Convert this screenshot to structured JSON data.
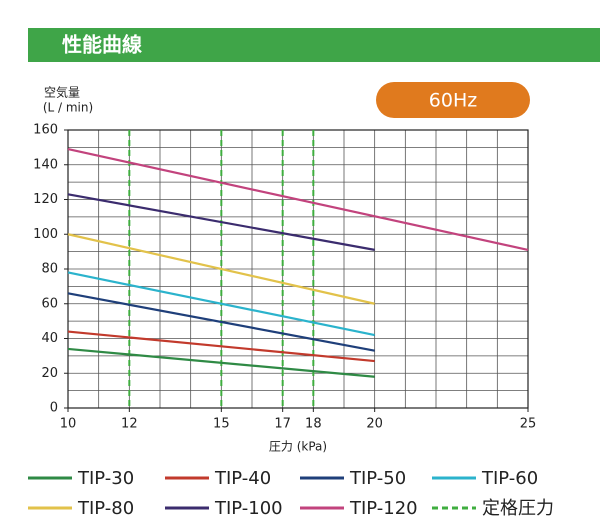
{
  "chart_data": {
    "type": "line",
    "title": "性能曲線",
    "badge": "60Hz",
    "y_label": "空気量",
    "y_unit": "(L / min)",
    "x_label": "圧力 (kPa)",
    "xlim": [
      10,
      25
    ],
    "xticks": [
      10,
      12,
      15,
      17,
      18,
      20,
      25
    ],
    "ylim": [
      0,
      160
    ],
    "yticks": [
      0,
      20,
      40,
      60,
      80,
      100,
      120,
      140,
      160
    ],
    "grid": {
      "x_step": 1,
      "y_step": 10
    },
    "series": [
      {
        "name": "TIP-30",
        "color": "#2f8a45",
        "x": [
          10,
          20
        ],
        "values": [
          34,
          18
        ]
      },
      {
        "name": "TIP-40",
        "color": "#c23a2c",
        "x": [
          10,
          20
        ],
        "values": [
          44,
          27
        ]
      },
      {
        "name": "TIP-50",
        "color": "#1f3f7a",
        "x": [
          10,
          20
        ],
        "values": [
          66,
          33
        ]
      },
      {
        "name": "TIP-60",
        "color": "#2bb3cc",
        "x": [
          10,
          20
        ],
        "values": [
          78,
          42
        ]
      },
      {
        "name": "TIP-80",
        "color": "#e2c24a",
        "x": [
          10,
          20
        ],
        "values": [
          100,
          60
        ]
      },
      {
        "name": "TIP-100",
        "color": "#3b2c6e",
        "x": [
          10,
          20
        ],
        "values": [
          123,
          91
        ]
      },
      {
        "name": "TIP-120",
        "color": "#c2437d",
        "x": [
          10,
          25
        ],
        "values": [
          149,
          91
        ]
      }
    ],
    "rated_pressure": {
      "name": "定格圧力",
      "color": "#3fae3f",
      "values": [
        12,
        15,
        17,
        18
      ]
    }
  }
}
